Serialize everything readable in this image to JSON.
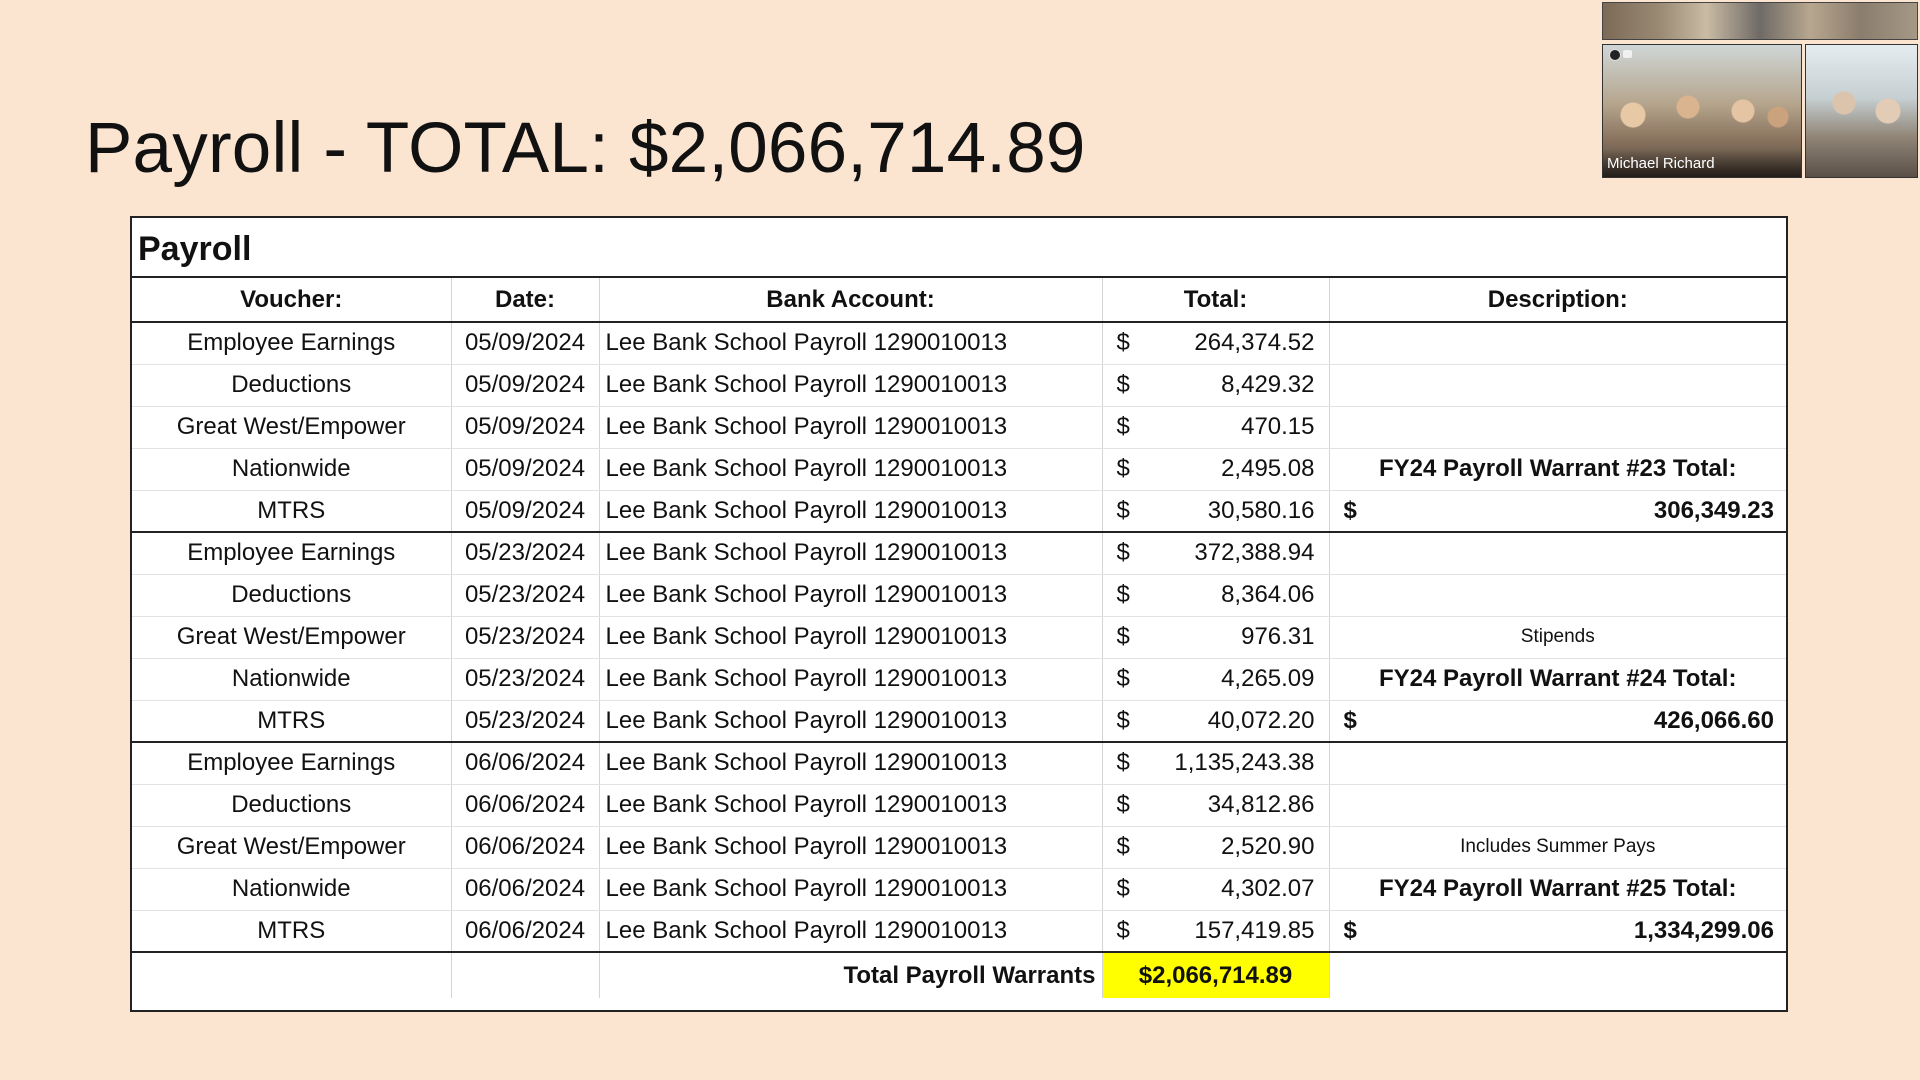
{
  "slide": {
    "title": "Payroll - TOTAL: $2,066,714.89"
  },
  "video": {
    "participant_name": "Michael Richard"
  },
  "sheet": {
    "title": "Payroll",
    "headers": {
      "voucher": "Voucher:",
      "date": "Date:",
      "bank": "Bank Account:",
      "total": "Total:",
      "description": "Description:"
    },
    "currency": "$",
    "rows": [
      {
        "voucher": "Employee Earnings",
        "date": "05/09/2024",
        "bank": "Lee Bank School Payroll 1290010013",
        "amount": "264,374.52",
        "description": ""
      },
      {
        "voucher": "Deductions",
        "date": "05/09/2024",
        "bank": "Lee Bank School Payroll 1290010013",
        "amount": "8,429.32",
        "description": ""
      },
      {
        "voucher": "Great West/Empower",
        "date": "05/09/2024",
        "bank": "Lee Bank School Payroll 1290010013",
        "amount": "470.15",
        "description": ""
      },
      {
        "voucher": "Nationwide",
        "date": "05/09/2024",
        "bank": "Lee Bank School Payroll 1290010013",
        "amount": "2,495.08",
        "description": "FY24 Payroll Warrant #23 Total:"
      },
      {
        "voucher": "MTRS",
        "date": "05/09/2024",
        "bank": "Lee Bank School Payroll 1290010013",
        "amount": "30,580.16",
        "description_amount": "306,349.23"
      },
      {
        "voucher": "Employee Earnings",
        "date": "05/23/2024",
        "bank": "Lee Bank School Payroll 1290010013",
        "amount": "372,388.94",
        "description": ""
      },
      {
        "voucher": "Deductions",
        "date": "05/23/2024",
        "bank": "Lee Bank School Payroll 1290010013",
        "amount": "8,364.06",
        "description": ""
      },
      {
        "voucher": "Great West/Empower",
        "date": "05/23/2024",
        "bank": "Lee Bank School Payroll 1290010013",
        "amount": "976.31",
        "description": "Stipends"
      },
      {
        "voucher": "Nationwide",
        "date": "05/23/2024",
        "bank": "Lee Bank School Payroll 1290010013",
        "amount": "4,265.09",
        "description": "FY24 Payroll Warrant #24 Total:"
      },
      {
        "voucher": "MTRS",
        "date": "05/23/2024",
        "bank": "Lee Bank School Payroll 1290010013",
        "amount": "40,072.20",
        "description_amount": "426,066.60"
      },
      {
        "voucher": "Employee Earnings",
        "date": "06/06/2024",
        "bank": "Lee Bank School Payroll 1290010013",
        "amount": "1,135,243.38",
        "description": ""
      },
      {
        "voucher": "Deductions",
        "date": "06/06/2024",
        "bank": "Lee Bank School Payroll 1290010013",
        "amount": "34,812.86",
        "description": ""
      },
      {
        "voucher": "Great West/Empower",
        "date": "06/06/2024",
        "bank": "Lee Bank School Payroll 1290010013",
        "amount": "2,520.90",
        "description": "Includes Summer Pays"
      },
      {
        "voucher": "Nationwide",
        "date": "06/06/2024",
        "bank": "Lee Bank School Payroll 1290010013",
        "amount": "4,302.07",
        "description": "FY24 Payroll Warrant #25 Total:"
      },
      {
        "voucher": "MTRS",
        "date": "06/06/2024",
        "bank": "Lee Bank School Payroll 1290010013",
        "amount": "157,419.85",
        "description_amount": "1,334,299.06"
      }
    ],
    "total": {
      "label": "Total Payroll Warrants",
      "value": "$2,066,714.89"
    },
    "highlight_color": "#ffff00"
  }
}
